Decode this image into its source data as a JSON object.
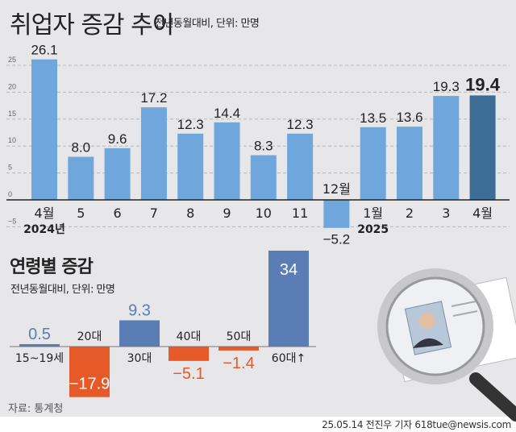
{
  "header": {
    "title": "취업자 증감 추이",
    "subtitle": "전년동월대비, 단위: 만명"
  },
  "chart_data": [
    {
      "type": "bar",
      "title": "취업자 증감 추이",
      "subtitle": "전년동월대비, 단위: 만명",
      "categories": [
        "4월",
        "5",
        "6",
        "7",
        "8",
        "9",
        "10",
        "11",
        "12월",
        "1월",
        "2",
        "3",
        "4월"
      ],
      "year_labels": [
        {
          "category_index": 0,
          "label": "2024년"
        },
        {
          "category_index": 9,
          "label": "2025"
        }
      ],
      "values": [
        26.1,
        8.0,
        9.6,
        17.2,
        12.3,
        14.4,
        8.3,
        12.3,
        -5.2,
        13.5,
        13.6,
        19.3,
        19.4
      ],
      "value_labels": [
        "26.1",
        "8.0",
        "9.6",
        "17.2",
        "12.3",
        "14.4",
        "8.3",
        "12.3",
        "−5.2",
        "13.5",
        "13.6",
        "19.3",
        "19.4"
      ],
      "yticks": [
        -5,
        0,
        5,
        10,
        15,
        20,
        25
      ],
      "ytick_labels": [
        "−5",
        "0",
        "5",
        "10",
        "15",
        "20",
        "25"
      ],
      "ylim": [
        -7,
        27
      ],
      "grid": true,
      "colors": {
        "bar": "#6fa6dc",
        "highlight": "#3b6d97"
      }
    },
    {
      "type": "bar",
      "title": "연령별 증감",
      "subtitle": "전년동월대비, 단위: 만명",
      "categories": [
        "15~19세",
        "20대",
        "30대",
        "40대",
        "50대",
        "60대↑"
      ],
      "values": [
        0.5,
        -17.9,
        9.3,
        -5.1,
        -1.4,
        34
      ],
      "value_labels": [
        "0.5",
        "−17.9",
        "9.3",
        "−5.1",
        "−1.4",
        "34"
      ],
      "colors": {
        "positive": "#5a7db6",
        "negative": "#e65a2a"
      }
    }
  ],
  "footer": {
    "source": "자료: 통계청",
    "credit": "25.05.14 전진우 기자 618tue@newsis.com"
  },
  "illustration": "magnifying-glass-over-resume"
}
